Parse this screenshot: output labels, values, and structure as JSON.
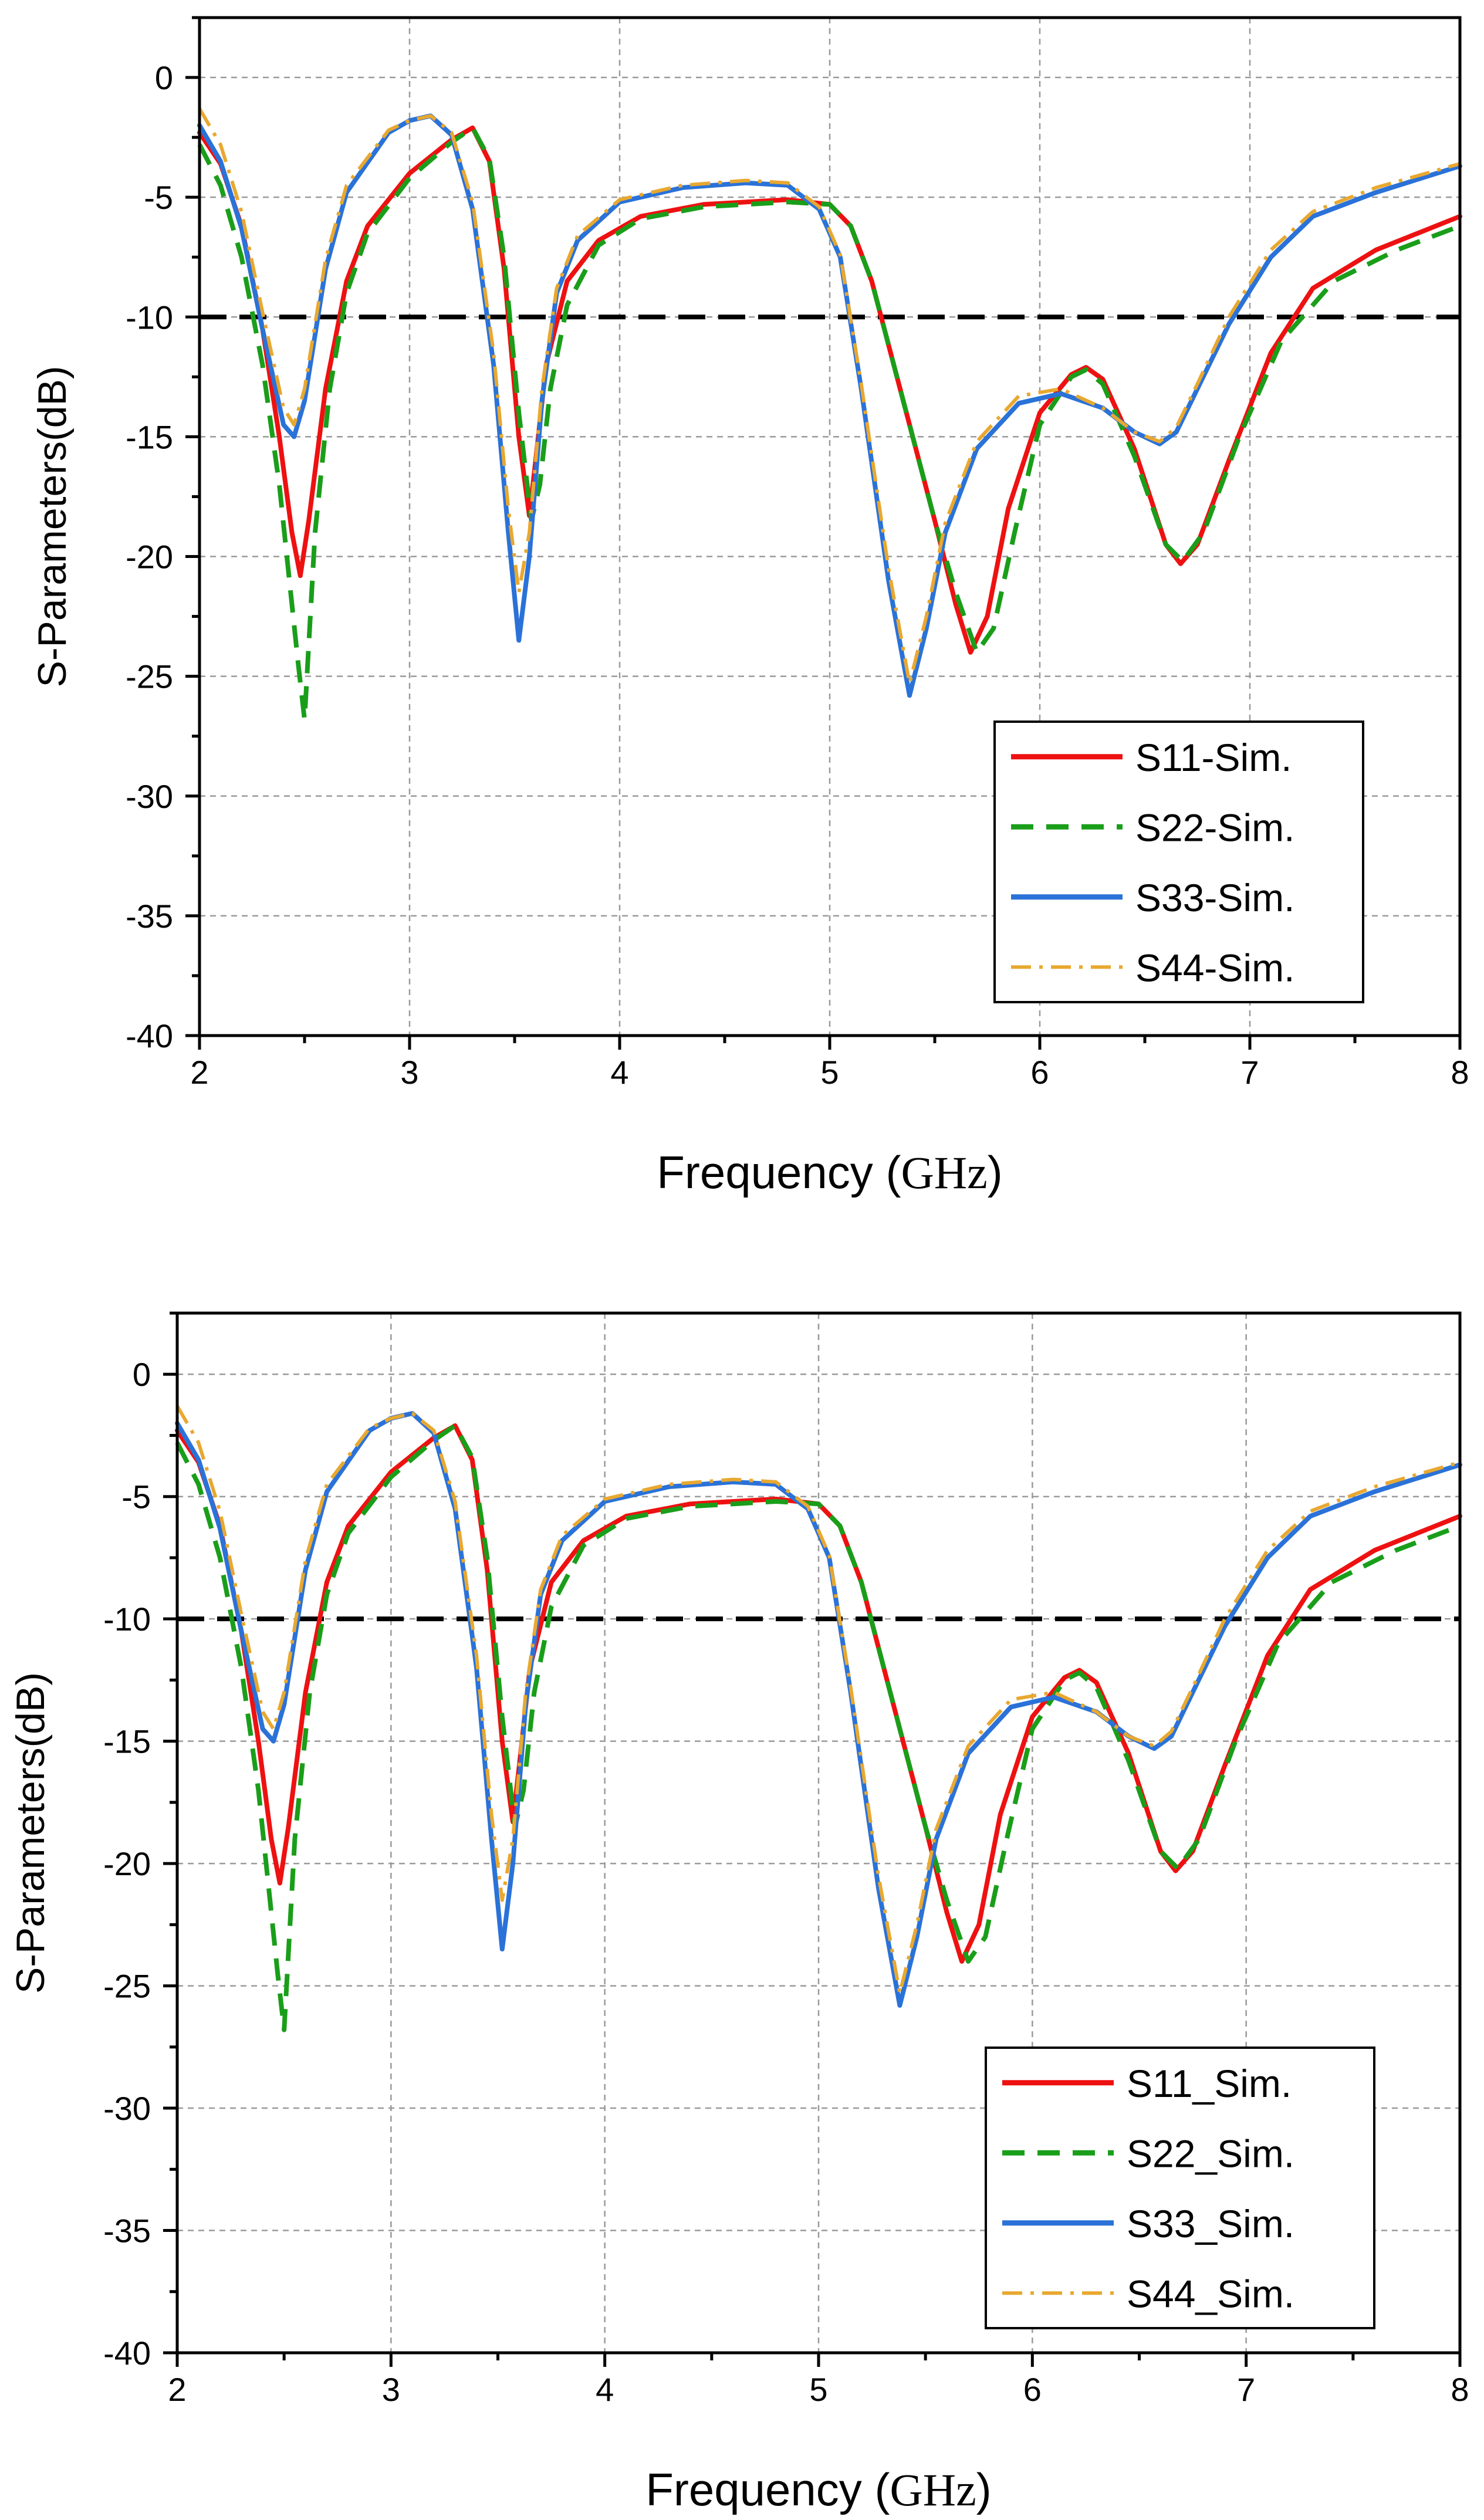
{
  "chart_data": [
    {
      "type": "line",
      "title": "",
      "xlabel": "Frequency",
      "xlabel_unit": "GHz",
      "ylabel": "S-Parameters(dB)",
      "xlim": [
        2,
        8
      ],
      "ylim": [
        -40,
        2.5
      ],
      "xticks": [
        "2",
        "3",
        "4",
        "5",
        "6",
        "7",
        "8"
      ],
      "yticks": [
        "0",
        "-5",
        "-10",
        "-15",
        "-20",
        "-25",
        "-30",
        "-35",
        "-40"
      ],
      "grid": true,
      "legend_position": "bottom-right",
      "reference_line": {
        "y": -10,
        "style": "dashed",
        "color": "#000000"
      },
      "series": [
        {
          "name": "S11-Sim.",
          "color": "#ee1111",
          "dash": "solid",
          "x": [
            2,
            2.1,
            2.2,
            2.3,
            2.38,
            2.44,
            2.48,
            2.52,
            2.6,
            2.7,
            2.8,
            3.0,
            3.2,
            3.3,
            3.38,
            3.45,
            3.52,
            3.57,
            3.6,
            3.65,
            3.75,
            3.9,
            4.1,
            4.4,
            4.8,
            5.0,
            5.1,
            5.2,
            5.35,
            5.5,
            5.6,
            5.67,
            5.75,
            5.85,
            6.0,
            6.15,
            6.22,
            6.3,
            6.45,
            6.6,
            6.67,
            6.75,
            6.9,
            7.1,
            7.3,
            7.6,
            8.0
          ],
          "y": [
            -2.3,
            -3.6,
            -6.2,
            -10.5,
            -15,
            -19,
            -20.8,
            -18.5,
            -13,
            -8.5,
            -6.2,
            -4,
            -2.6,
            -2.1,
            -3.5,
            -8,
            -15,
            -18.3,
            -16,
            -12,
            -8.5,
            -6.8,
            -5.8,
            -5.3,
            -5.1,
            -5.3,
            -6.2,
            -8.5,
            -13.5,
            -18.5,
            -22,
            -24,
            -22.5,
            -18,
            -14,
            -12.4,
            -12.1,
            -12.6,
            -15.5,
            -19.5,
            -20.3,
            -19.5,
            -16,
            -11.5,
            -8.8,
            -7.2,
            -5.8
          ]
        },
        {
          "name": "S22-Sim.",
          "color": "#1a9e1a",
          "dash": "dashed",
          "x": [
            2,
            2.1,
            2.2,
            2.3,
            2.38,
            2.44,
            2.47,
            2.5,
            2.55,
            2.62,
            2.7,
            2.8,
            3.0,
            3.2,
            3.3,
            3.38,
            3.45,
            3.52,
            3.58,
            3.62,
            3.67,
            3.75,
            3.9,
            4.1,
            4.4,
            4.8,
            5.0,
            5.1,
            5.2,
            5.35,
            5.5,
            5.6,
            5.7,
            5.78,
            5.88,
            6.0,
            6.15,
            6.22,
            6.3,
            6.45,
            6.6,
            6.68,
            6.78,
            6.95,
            7.15,
            7.4,
            7.7,
            8.0
          ],
          "y": [
            -2.8,
            -4.5,
            -7.5,
            -12,
            -17,
            -22,
            -24.5,
            -26.8,
            -19,
            -13,
            -9,
            -6.5,
            -4.2,
            -2.7,
            -2.1,
            -3.4,
            -7.5,
            -14,
            -18.5,
            -17,
            -13,
            -9.5,
            -7,
            -5.9,
            -5.4,
            -5.2,
            -5.3,
            -6.2,
            -8.5,
            -13.5,
            -18.5,
            -21.5,
            -24,
            -23,
            -19,
            -14.5,
            -12.5,
            -12.2,
            -12.8,
            -15.8,
            -19.5,
            -20.2,
            -19,
            -15,
            -11,
            -8.5,
            -7.2,
            -6.2
          ]
        },
        {
          "name": "S33-Sim.",
          "color": "#2a72d8",
          "dash": "solid",
          "x": [
            2,
            2.1,
            2.2,
            2.3,
            2.4,
            2.45,
            2.5,
            2.6,
            2.7,
            2.9,
            3.0,
            3.1,
            3.2,
            3.3,
            3.4,
            3.47,
            3.52,
            3.57,
            3.63,
            3.7,
            3.8,
            4.0,
            4.3,
            4.6,
            4.8,
            4.95,
            5.05,
            5.15,
            5.28,
            5.38,
            5.46,
            5.55,
            5.7,
            5.9,
            6.1,
            6.3,
            6.45,
            6.57,
            6.65,
            6.75,
            6.9,
            7.1,
            7.3,
            7.6,
            8.0
          ],
          "y": [
            -2.0,
            -3.5,
            -6.3,
            -10.5,
            -14.5,
            -15,
            -13.5,
            -8,
            -4.8,
            -2.3,
            -1.8,
            -1.6,
            -2.4,
            -5.5,
            -12,
            -19,
            -23.5,
            -20,
            -13.5,
            -9,
            -6.8,
            -5.2,
            -4.6,
            -4.4,
            -4.5,
            -5.5,
            -7.5,
            -13,
            -21,
            -25.8,
            -23,
            -19,
            -15.5,
            -13.6,
            -13.2,
            -13.8,
            -14.8,
            -15.3,
            -14.8,
            -13,
            -10.3,
            -7.5,
            -5.8,
            -4.8,
            -3.7
          ]
        },
        {
          "name": "S44-Sim.",
          "color": "#e8a830",
          "dash": "dashdot",
          "x": [
            2,
            2.1,
            2.2,
            2.3,
            2.4,
            2.45,
            2.5,
            2.6,
            2.7,
            2.9,
            3.0,
            3.1,
            3.2,
            3.3,
            3.4,
            3.47,
            3.52,
            3.57,
            3.63,
            3.7,
            3.8,
            4.0,
            4.3,
            4.6,
            4.8,
            4.95,
            5.05,
            5.15,
            5.28,
            5.38,
            5.46,
            5.55,
            5.7,
            5.9,
            6.1,
            6.3,
            6.45,
            6.57,
            6.65,
            6.75,
            6.9,
            7.1,
            7.3,
            7.6,
            8.0
          ],
          "y": [
            -1.3,
            -2.8,
            -5.6,
            -9.8,
            -13.8,
            -14.5,
            -13,
            -7.6,
            -4.5,
            -2.2,
            -1.8,
            -1.6,
            -2.3,
            -5.2,
            -11.5,
            -18,
            -21.5,
            -19,
            -13,
            -8.8,
            -6.6,
            -5.1,
            -4.5,
            -4.3,
            -4.4,
            -5.4,
            -7.4,
            -12.8,
            -20.5,
            -25.3,
            -22.5,
            -18.6,
            -15.2,
            -13.3,
            -13,
            -13.8,
            -14.8,
            -15.2,
            -14.6,
            -12.8,
            -10,
            -7.2,
            -5.6,
            -4.6,
            -3.6
          ]
        }
      ]
    },
    {
      "type": "line",
      "title": "",
      "xlabel": "Frequency",
      "xlabel_unit": "GHz",
      "ylabel": "S-Parameters(dB)",
      "xlim": [
        2,
        8
      ],
      "ylim": [
        -40,
        2.5
      ],
      "xticks": [
        "2",
        "3",
        "4",
        "5",
        "6",
        "7",
        "8"
      ],
      "yticks": [
        "0",
        "-5",
        "-10",
        "-15",
        "-20",
        "-25",
        "-30",
        "-35",
        "-40"
      ],
      "grid": true,
      "legend_position": "bottom-right",
      "reference_line": {
        "y": -10,
        "style": "dashed",
        "color": "#000000"
      },
      "series": [
        {
          "name": "S11_Sim.",
          "color": "#ee1111",
          "dash": "solid",
          "x": [
            2,
            2.1,
            2.2,
            2.3,
            2.38,
            2.44,
            2.48,
            2.52,
            2.6,
            2.7,
            2.8,
            3.0,
            3.2,
            3.3,
            3.38,
            3.45,
            3.52,
            3.57,
            3.6,
            3.65,
            3.75,
            3.9,
            4.1,
            4.4,
            4.8,
            5.0,
            5.1,
            5.2,
            5.35,
            5.5,
            5.6,
            5.67,
            5.75,
            5.85,
            6.0,
            6.15,
            6.22,
            6.3,
            6.45,
            6.6,
            6.67,
            6.75,
            6.9,
            7.1,
            7.3,
            7.6,
            8.0
          ],
          "y": [
            -2.3,
            -3.6,
            -6.2,
            -10.5,
            -15,
            -19,
            -20.8,
            -18.5,
            -13,
            -8.5,
            -6.2,
            -4,
            -2.6,
            -2.1,
            -3.5,
            -8,
            -15,
            -18.3,
            -16,
            -12,
            -8.5,
            -6.8,
            -5.8,
            -5.3,
            -5.1,
            -5.3,
            -6.2,
            -8.5,
            -13.5,
            -18.5,
            -22,
            -24,
            -22.5,
            -18,
            -14,
            -12.4,
            -12.1,
            -12.6,
            -15.5,
            -19.5,
            -20.3,
            -19.5,
            -16,
            -11.5,
            -8.8,
            -7.2,
            -5.8
          ]
        },
        {
          "name": "S22_Sim.",
          "color": "#1a9e1a",
          "dash": "dashed",
          "x": [
            2,
            2.1,
            2.2,
            2.3,
            2.38,
            2.44,
            2.47,
            2.5,
            2.55,
            2.62,
            2.7,
            2.8,
            3.0,
            3.2,
            3.3,
            3.38,
            3.45,
            3.52,
            3.58,
            3.62,
            3.67,
            3.75,
            3.9,
            4.1,
            4.4,
            4.8,
            5.0,
            5.1,
            5.2,
            5.35,
            5.5,
            5.6,
            5.7,
            5.78,
            5.88,
            6.0,
            6.15,
            6.22,
            6.3,
            6.45,
            6.6,
            6.68,
            6.78,
            6.95,
            7.15,
            7.4,
            7.7,
            8.0
          ],
          "y": [
            -2.8,
            -4.5,
            -7.5,
            -12,
            -17,
            -22,
            -24.5,
            -26.8,
            -19,
            -13,
            -9,
            -6.5,
            -4.2,
            -2.7,
            -2.1,
            -3.4,
            -7.5,
            -14,
            -18.5,
            -17,
            -13,
            -9.5,
            -7,
            -5.9,
            -5.4,
            -5.2,
            -5.3,
            -6.2,
            -8.5,
            -13.5,
            -18.5,
            -21.5,
            -24,
            -23,
            -19,
            -14.5,
            -12.5,
            -12.2,
            -12.8,
            -15.8,
            -19.5,
            -20.2,
            -19,
            -15,
            -11,
            -8.5,
            -7.2,
            -6.2
          ]
        },
        {
          "name": "S33_Sim.",
          "color": "#2a72d8",
          "dash": "solid",
          "x": [
            2,
            2.1,
            2.2,
            2.3,
            2.4,
            2.45,
            2.5,
            2.6,
            2.7,
            2.9,
            3.0,
            3.1,
            3.2,
            3.3,
            3.4,
            3.47,
            3.52,
            3.57,
            3.63,
            3.7,
            3.8,
            4.0,
            4.3,
            4.6,
            4.8,
            4.95,
            5.05,
            5.15,
            5.28,
            5.38,
            5.46,
            5.55,
            5.7,
            5.9,
            6.1,
            6.3,
            6.45,
            6.57,
            6.65,
            6.75,
            6.9,
            7.1,
            7.3,
            7.6,
            8.0
          ],
          "y": [
            -2.0,
            -3.5,
            -6.3,
            -10.5,
            -14.5,
            -15,
            -13.5,
            -8,
            -4.8,
            -2.3,
            -1.8,
            -1.6,
            -2.4,
            -5.5,
            -12,
            -19,
            -23.5,
            -20,
            -13.5,
            -9,
            -6.8,
            -5.2,
            -4.6,
            -4.4,
            -4.5,
            -5.5,
            -7.5,
            -13,
            -21,
            -25.8,
            -23,
            -19,
            -15.5,
            -13.6,
            -13.2,
            -13.8,
            -14.8,
            -15.3,
            -14.8,
            -13,
            -10.3,
            -7.5,
            -5.8,
            -4.8,
            -3.7
          ]
        },
        {
          "name": "S44_Sim.",
          "color": "#e8a830",
          "dash": "dashdot",
          "x": [
            2,
            2.1,
            2.2,
            2.3,
            2.4,
            2.45,
            2.5,
            2.6,
            2.7,
            2.9,
            3.0,
            3.1,
            3.2,
            3.3,
            3.4,
            3.47,
            3.52,
            3.57,
            3.63,
            3.7,
            3.8,
            4.0,
            4.3,
            4.6,
            4.8,
            4.95,
            5.05,
            5.15,
            5.28,
            5.38,
            5.46,
            5.55,
            5.7,
            5.9,
            6.1,
            6.3,
            6.45,
            6.57,
            6.65,
            6.75,
            6.9,
            7.1,
            7.3,
            7.6,
            8.0
          ],
          "y": [
            -1.3,
            -2.8,
            -5.6,
            -9.8,
            -13.8,
            -14.5,
            -13,
            -7.6,
            -4.5,
            -2.2,
            -1.8,
            -1.6,
            -2.3,
            -5.2,
            -11.5,
            -18,
            -21.5,
            -19,
            -13,
            -8.8,
            -6.6,
            -5.1,
            -4.5,
            -4.3,
            -4.4,
            -5.4,
            -7.4,
            -12.8,
            -20.5,
            -25.3,
            -22.5,
            -18.6,
            -15.2,
            -13.3,
            -13,
            -13.8,
            -14.8,
            -15.2,
            -14.6,
            -12.8,
            -10,
            -7.2,
            -5.6,
            -4.6,
            -3.6
          ]
        }
      ]
    }
  ]
}
